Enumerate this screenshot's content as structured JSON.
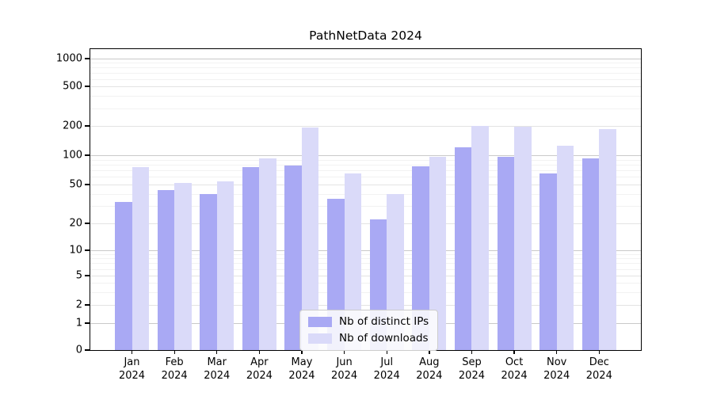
{
  "figure": {
    "title": "PathNetData 2024"
  },
  "chart_data": {
    "type": "bar",
    "title": "PathNetData 2024",
    "xlabel": "",
    "ylabel": "",
    "yscale": "symlog",
    "ylim": [
      0,
      1000
    ],
    "grid": true,
    "legend_position": "lower center (inside axes)",
    "year": "2024",
    "months": [
      "Jan",
      "Feb",
      "Mar",
      "Apr",
      "May",
      "Jun",
      "Jul",
      "Aug",
      "Sep",
      "Oct",
      "Nov",
      "Dec"
    ],
    "categories": [
      "Jan 2024",
      "Feb 2024",
      "Mar 2024",
      "Apr 2024",
      "May 2024",
      "Jun 2024",
      "Jul 2024",
      "Aug 2024",
      "Sep 2024",
      "Oct 2024",
      "Nov 2024",
      "Dec 2024"
    ],
    "yticks": [
      0,
      1,
      2,
      5,
      10,
      20,
      50,
      100,
      200,
      500,
      1000
    ],
    "minor_gridline_values": [
      3,
      4,
      6,
      7,
      8,
      9,
      30,
      40,
      60,
      70,
      80,
      90,
      300,
      400,
      600,
      700,
      800,
      900
    ],
    "series": [
      {
        "name": "Nb of distinct IPs",
        "color": "#a9a9f4",
        "values": [
          33,
          44,
          40,
          76,
          78,
          36,
          22,
          77,
          120,
          96,
          65,
          92
        ]
      },
      {
        "name": "Nb of downloads",
        "color": "#dadaf9",
        "values": [
          75,
          52,
          54,
          93,
          194,
          65,
          40,
          97,
          200,
          198,
          126,
          186
        ]
      }
    ]
  }
}
